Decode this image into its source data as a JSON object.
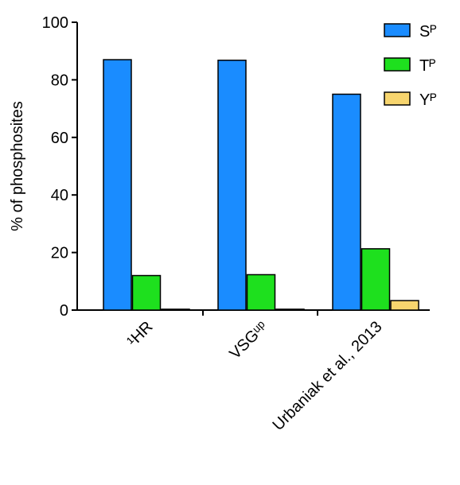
{
  "chart_data": {
    "type": "bar",
    "y_label": "% of phosphosites",
    "categories": [
      "¹HR",
      "VSGᵘᵖ",
      "Urbaniak et al., 2013"
    ],
    "series": [
      {
        "name": "Sᴾ",
        "color": "#1a8cff",
        "values": [
          87,
          86.8,
          75
        ]
      },
      {
        "name": "Tᴾ",
        "color": "#1ee01e",
        "values": [
          12,
          12.3,
          21.3
        ]
      },
      {
        "name": "Yᴾ",
        "color": "#f7d56e",
        "values": [
          0.3,
          0.3,
          3.3
        ]
      }
    ],
    "ylim": [
      0,
      100
    ],
    "yticks": [
      0,
      20,
      40,
      60,
      80,
      100
    ],
    "legend": "top-right"
  }
}
